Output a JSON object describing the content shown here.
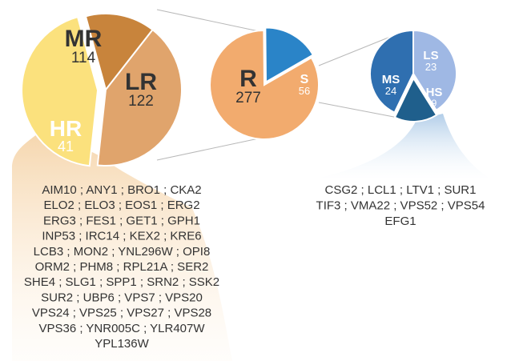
{
  "chart_data": [
    {
      "type": "pie",
      "slices": [
        {
          "label": "MR",
          "value": 114,
          "color": "#e0a46c"
        },
        {
          "label": "LR",
          "value": 122,
          "color": "#fbe17d"
        },
        {
          "label": "HR",
          "value": 41,
          "color": "#c8843c"
        }
      ]
    },
    {
      "type": "pie",
      "slices": [
        {
          "label": "R",
          "value": 277,
          "color": "#f2ab6e"
        },
        {
          "label": "S",
          "value": 56,
          "color": "#2a84c8"
        }
      ]
    },
    {
      "type": "pie",
      "slices": [
        {
          "label": "LS",
          "value": 23,
          "color": "#9fb8e4"
        },
        {
          "label": "HS",
          "value": 9,
          "color": "#1f5f8c"
        },
        {
          "label": "MS",
          "value": 24,
          "color": "#2f6fb0"
        }
      ]
    }
  ],
  "gene_lists": {
    "HR": [
      "AIM10 ; ANY1 ; BRO1 ; CKA2",
      "ELO2 ; ELO3 ; EOS1 ; ERG2",
      "ERG3 ; FES1 ; GET1 ; GPH1",
      "INP53 ; IRC14 ; KEX2 ; KRE6",
      "LCB3 ; MON2 ; YNL296W ; OPI8",
      "ORM2 ; PHM8 ; RPL21A ; SER2",
      "SHE4 ; SLG1 ; SPP1 ; SRN2 ; SSK2",
      "SUR2 ; UBP6 ; VPS7 ; VPS20",
      "VPS24 ; VPS25 ; VPS27 ; VPS28",
      "VPS36 ; YNR005C ; YLR407W",
      "YPL136W"
    ],
    "HS": [
      "CSG2 ; LCL1 ; LTV1 ; SUR1",
      "TIF3 ; VMA22 ; VPS52 ; VPS54",
      "EFG1"
    ]
  }
}
